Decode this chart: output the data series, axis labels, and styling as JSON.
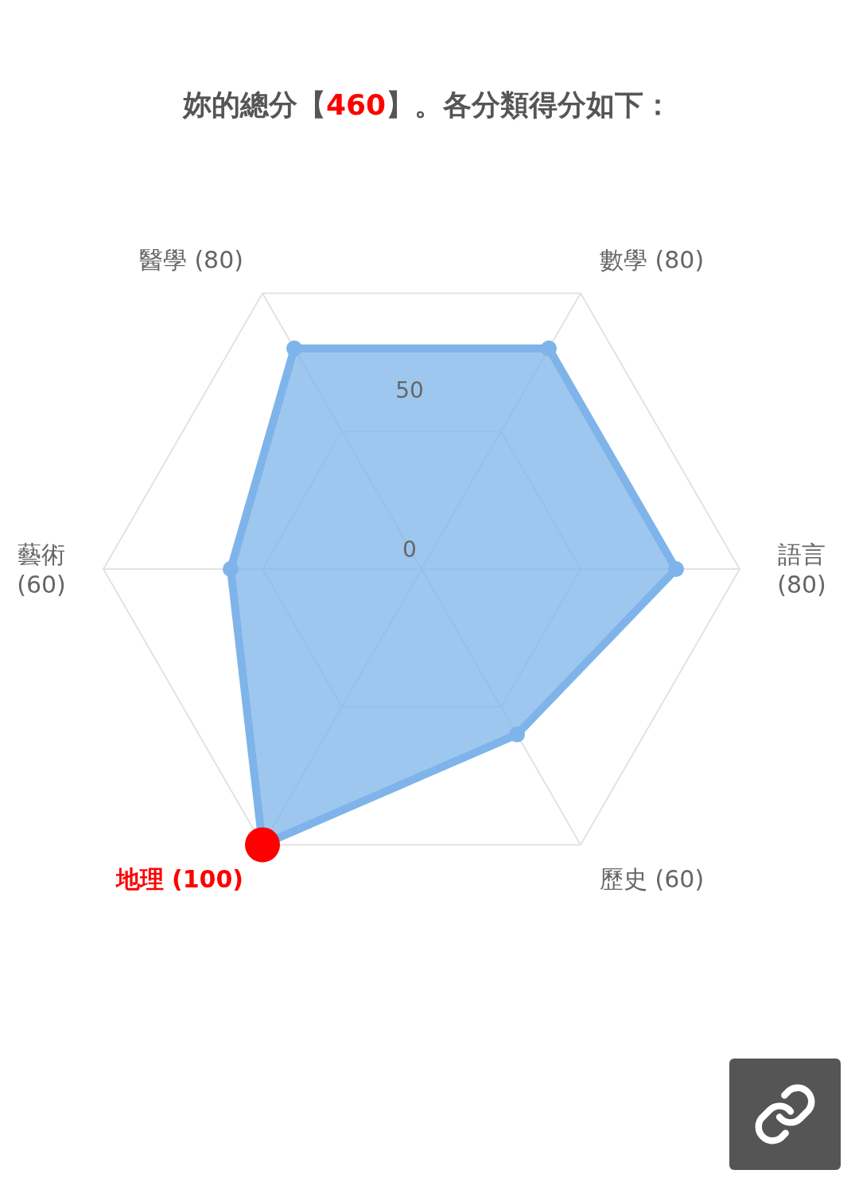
{
  "chart_data": {
    "type": "radar",
    "title": "妳的總分【460】。各分類得分如下：",
    "categories": [
      "數學 (80)",
      "語言 (80)",
      "歷史 (60)",
      "地理 (100)",
      "藝術 (60)",
      "醫學 (80)"
    ],
    "series": [
      {
        "color": "#7eb4e9",
        "colors": [
          "#7eb4e9",
          "#7eb4e9",
          "#7eb4e9",
          "#ff0000",
          "#7eb4e9",
          "#7eb4e9"
        ],
        "values": [
          80,
          80,
          60,
          100,
          60,
          80
        ]
      }
    ],
    "ylim": [
      0,
      100
    ],
    "yticks": [
      0,
      50
    ],
    "grid": true,
    "marker": "circle"
  }
}
